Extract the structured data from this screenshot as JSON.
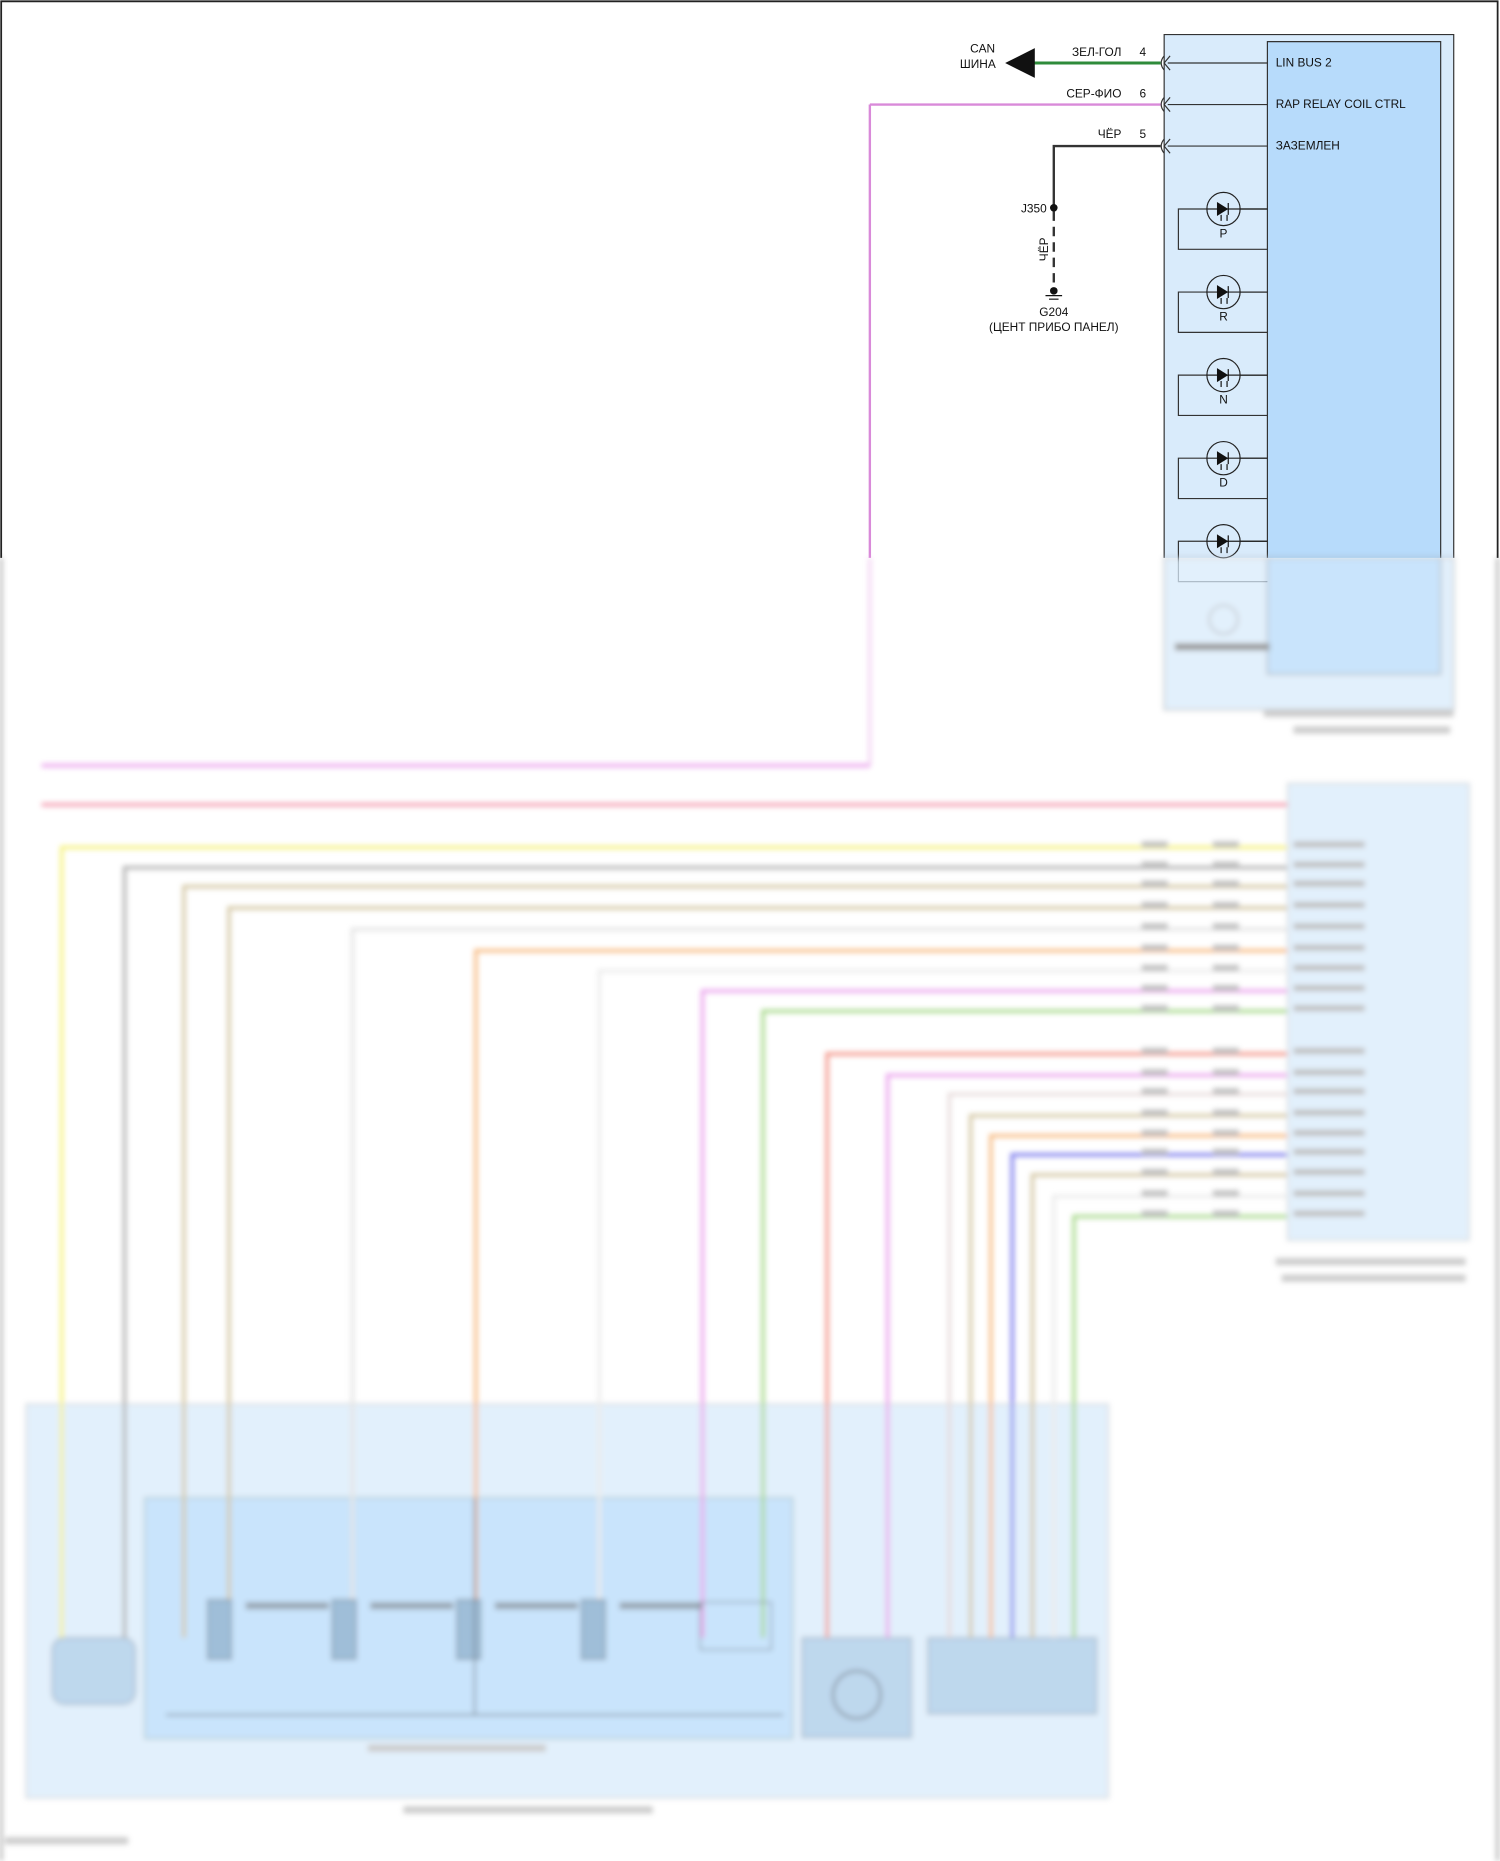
{
  "can_bus": {
    "line1": "CAN",
    "line2": "ШИНА"
  },
  "pins": [
    {
      "wire": "ЗЕЛ-ГОЛ",
      "number": "4",
      "signal": "LIN BUS 2",
      "color": "#2e8b3a"
    },
    {
      "wire": "СЕР-ФИО",
      "number": "6",
      "signal": "RAP RELAY COIL CTRL",
      "color": "#d98ad9"
    },
    {
      "wire": "ЧЁР",
      "number": "5",
      "signal": "ЗАЗЕМЛЕН",
      "color": "#333333"
    }
  ],
  "ground": {
    "splice": "J350",
    "wire": "ЧЁР",
    "ground_id": "G204",
    "location": "(ЦЕНТ ПРИБО ПАНЕЛ)"
  },
  "indicators": [
    {
      "label": "P",
      "icon": "led-icon"
    },
    {
      "label": "R",
      "icon": "led-icon"
    },
    {
      "label": "N",
      "icon": "led-icon"
    },
    {
      "label": "D",
      "icon": "led-icon"
    },
    {
      "label": "",
      "icon": "led-icon"
    }
  ],
  "colors": {
    "module_fill": "#d9ebfb",
    "module_inner": "#b7dbfb",
    "wire_yellow": "#f3ee5a",
    "wire_grey": "#9a9a9a",
    "wire_tan": "#c8b78a",
    "wire_orange": "#f5a860",
    "wire_magenta": "#e58ae8",
    "wire_green": "#8fcf6a",
    "wire_red": "#f07a6a",
    "wire_blue": "#5a5ae8",
    "wire_pink": "#f0809a"
  }
}
